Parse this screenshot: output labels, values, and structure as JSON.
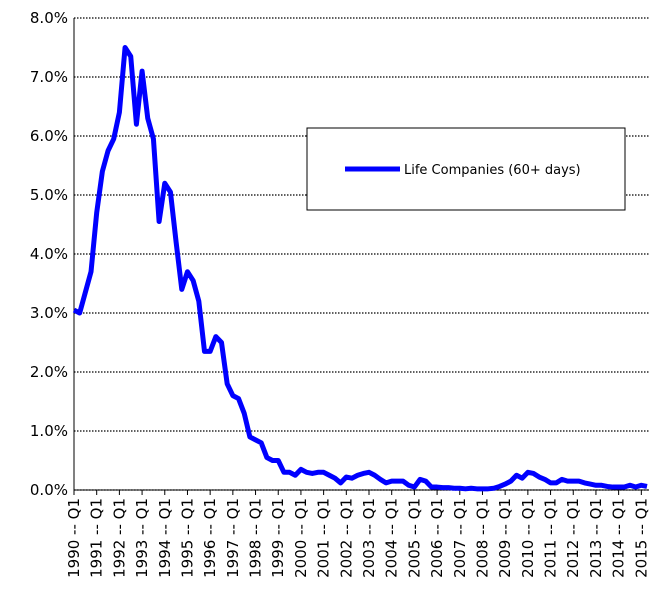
{
  "chart_data": {
    "type": "line",
    "categories": [
      "1990 -- Q1",
      null,
      null,
      null,
      "1991 -- Q1",
      null,
      null,
      null,
      "1992 -- Q1",
      null,
      null,
      null,
      "1993 -- Q1",
      null,
      null,
      null,
      "1994 -- Q1",
      null,
      null,
      null,
      "1995 -- Q1",
      null,
      null,
      null,
      "1996 -- Q1",
      null,
      null,
      null,
      "1997 -- Q1",
      null,
      null,
      null,
      "1998 -- Q1",
      null,
      null,
      null,
      "1999 -- Q1",
      null,
      null,
      null,
      "2000 -- Q1",
      null,
      null,
      null,
      "2001 -- Q1",
      null,
      null,
      null,
      "2002 -- Q1",
      null,
      null,
      null,
      "2003 -- Q1",
      null,
      null,
      null,
      "2004 -- Q1",
      null,
      null,
      null,
      "2005 -- Q1",
      null,
      null,
      null,
      "2006 -- Q1",
      null,
      null,
      null,
      "2007 -- Q1",
      null,
      null,
      null,
      "2008 -- Q1",
      null,
      null,
      null,
      "2009 -- Q1",
      null,
      null,
      null,
      "2010 -- Q1",
      null,
      null,
      null,
      "2011 -- Q1",
      null,
      null,
      null,
      "2012 -- Q1",
      null,
      null,
      null,
      "2013 -- Q1",
      null,
      null,
      null,
      "2014 -- Q1",
      null,
      null,
      null,
      "2015 -- Q1",
      null
    ],
    "series": [
      {
        "name": "Life Companies (60+ days)",
        "color": "#0000ff",
        "values": [
          3.05,
          3.0,
          3.35,
          3.7,
          4.7,
          5.4,
          5.75,
          5.95,
          6.4,
          7.5,
          7.35,
          6.2,
          7.1,
          6.3,
          5.95,
          4.55,
          5.2,
          5.05,
          4.2,
          3.4,
          3.7,
          3.55,
          3.2,
          2.35,
          2.35,
          2.6,
          2.5,
          1.8,
          1.6,
          1.55,
          1.3,
          0.9,
          0.85,
          0.8,
          0.55,
          0.5,
          0.5,
          0.3,
          0.3,
          0.25,
          0.35,
          0.3,
          0.28,
          0.3,
          0.3,
          0.25,
          0.2,
          0.12,
          0.22,
          0.2,
          0.25,
          0.28,
          0.3,
          0.25,
          0.18,
          0.12,
          0.15,
          0.15,
          0.15,
          0.08,
          0.05,
          0.18,
          0.15,
          0.05,
          0.05,
          0.04,
          0.04,
          0.03,
          0.03,
          0.02,
          0.03,
          0.02,
          0.02,
          0.02,
          0.03,
          0.06,
          0.1,
          0.15,
          0.25,
          0.2,
          0.3,
          0.28,
          0.22,
          0.18,
          0.12,
          0.12,
          0.18,
          0.15,
          0.15,
          0.15,
          0.12,
          0.1,
          0.08,
          0.08,
          0.06,
          0.05,
          0.05,
          0.05,
          0.08,
          0.05,
          0.08,
          0.06
        ]
      }
    ],
    "ylim": [
      0,
      8
    ],
    "yticks": [
      {
        "value": 0,
        "label": "0.0%"
      },
      {
        "value": 1,
        "label": "1.0%"
      },
      {
        "value": 2,
        "label": "2.0%"
      },
      {
        "value": 3,
        "label": "3.0%"
      },
      {
        "value": 4,
        "label": "4.0%"
      },
      {
        "value": 5,
        "label": "5.0%"
      },
      {
        "value": 6,
        "label": "6.0%"
      },
      {
        "value": 7,
        "label": "7.0%"
      },
      {
        "value": 8,
        "label": "8.0%"
      }
    ],
    "grid": true
  }
}
